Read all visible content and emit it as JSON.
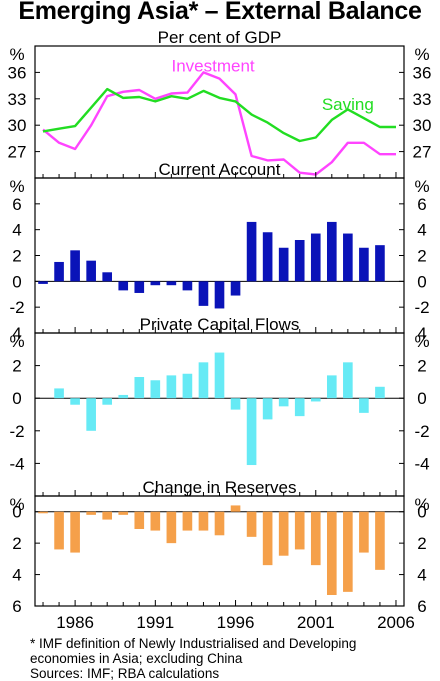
{
  "title": "Emerging Asia* – External Balance",
  "unit_label": "%",
  "footnotes": [
    "*   IMF definition of Newly Industrialised and Developing",
    "economies in Asia; excluding China",
    "Sources: IMF; RBA calculations"
  ],
  "colors": {
    "investment": "#ff44ff",
    "saving": "#22dd22",
    "current_account": "#0a13b8",
    "capital_flows": "#66eaf5",
    "reserves": "#f5a04a"
  },
  "chart_data": [
    {
      "type": "line",
      "subtitle": "Per cent of GDP",
      "x": [
        1984,
        1985,
        1986,
        1987,
        1988,
        1989,
        1990,
        1991,
        1992,
        1993,
        1994,
        1995,
        1996,
        1997,
        1998,
        1999,
        2000,
        2001,
        2002,
        2003,
        2004,
        2005,
        2006
      ],
      "series": [
        {
          "name": "Investment",
          "color_key": "investment",
          "values": [
            29.5,
            28,
            27.3,
            30,
            33.3,
            33.8,
            34,
            33,
            33.6,
            33.7,
            36,
            35.3,
            33.5,
            26.5,
            26,
            26.1,
            24.6,
            24.4,
            25.8,
            28,
            28,
            26.7,
            26.7
          ]
        },
        {
          "name": "Saving",
          "color_key": "saving",
          "values": [
            29.3,
            29.6,
            29.9,
            32,
            34.1,
            33.1,
            33.2,
            32.7,
            33.3,
            33,
            33.9,
            33.1,
            32.7,
            31.2,
            30.3,
            29.1,
            28.2,
            28.6,
            30.6,
            31.8,
            30.8,
            29.8,
            29.8
          ]
        }
      ],
      "ylim": [
        24,
        39
      ],
      "yticks": [
        27,
        30,
        33,
        36
      ],
      "labels": [
        "Investment",
        "Saving"
      ]
    },
    {
      "type": "bar",
      "subtitle": "Current Account",
      "x": [
        1984,
        1985,
        1986,
        1987,
        1988,
        1989,
        1990,
        1991,
        1992,
        1993,
        1994,
        1995,
        1996,
        1997,
        1998,
        1999,
        2000,
        2001,
        2002,
        2003,
        2004,
        2005,
        2006
      ],
      "values": [
        -0.2,
        1.5,
        2.4,
        1.6,
        0.7,
        -0.7,
        -0.9,
        -0.3,
        -0.3,
        -0.7,
        -1.9,
        -2.1,
        -1.1,
        4.6,
        3.8,
        2.6,
        3.2,
        3.7,
        4.6,
        3.7,
        2.6,
        2.8,
        null
      ],
      "ylim": [
        -4,
        8
      ],
      "yticks": [
        -2,
        0,
        2,
        4,
        6
      ]
    },
    {
      "type": "bar",
      "subtitle": "Private Capital Flows",
      "x": [
        1984,
        1985,
        1986,
        1987,
        1988,
        1989,
        1990,
        1991,
        1992,
        1993,
        1994,
        1995,
        1996,
        1997,
        1998,
        1999,
        2000,
        2001,
        2002,
        2003,
        2004,
        2005,
        2006
      ],
      "values": [
        0,
        0.6,
        -0.4,
        -2.0,
        -0.4,
        0.2,
        1.3,
        1.1,
        1.4,
        1.5,
        2.2,
        2.8,
        -0.7,
        -4.1,
        -1.3,
        -0.5,
        -1.1,
        -0.2,
        1.4,
        2.2,
        -0.9,
        0.7,
        null
      ],
      "ylim": [
        -6,
        4
      ],
      "yticks": [
        -4,
        -2,
        0,
        2,
        4
      ]
    },
    {
      "type": "bar",
      "subtitle": "Change in Reserves",
      "x": [
        1984,
        1985,
        1986,
        1987,
        1988,
        1989,
        1990,
        1991,
        1992,
        1993,
        1994,
        1995,
        1996,
        1997,
        1998,
        1999,
        2000,
        2001,
        2002,
        2003,
        2004,
        2005,
        2006
      ],
      "values": [
        0.1,
        2.4,
        2.6,
        0.2,
        0.5,
        0.2,
        1.1,
        1.2,
        2.0,
        1.2,
        1.2,
        1.5,
        -0.4,
        1.6,
        3.4,
        2.8,
        2.4,
        3.4,
        5.3,
        5.1,
        2.6,
        3.7,
        null
      ],
      "ylim": [
        -1,
        6
      ],
      "yticks": [
        0,
        2,
        4,
        6
      ],
      "y_inverted": true
    }
  ],
  "x_axis": {
    "ticks": [
      "1986",
      "1991",
      "1996",
      "2001",
      "2006"
    ],
    "tick_years": [
      1986,
      1991,
      1996,
      2001,
      2006
    ]
  }
}
